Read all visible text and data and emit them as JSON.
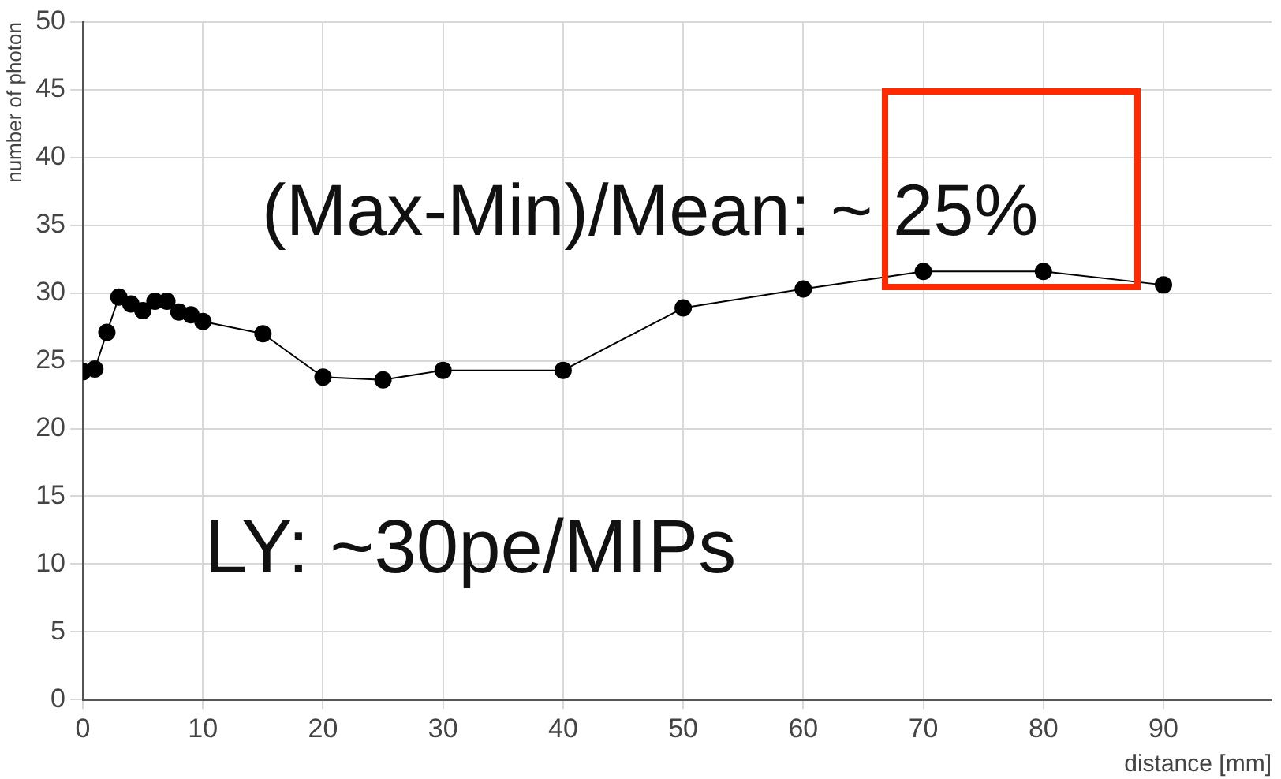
{
  "chart_data": {
    "type": "line",
    "xlabel": "distance [mm]",
    "ylabel": "number of photon",
    "x": [
      0,
      1,
      2,
      3,
      4,
      5,
      6,
      7,
      8,
      9,
      10,
      15,
      20,
      25,
      30,
      40,
      50,
      60,
      70,
      80,
      90
    ],
    "series": [
      {
        "color": "#000000",
        "values": [
          24.2,
          24.4,
          27.1,
          29.7,
          29.2,
          28.7,
          29.4,
          29.4,
          28.6,
          28.4,
          27.9,
          27.0,
          23.8,
          23.6,
          24.3,
          24.3,
          28.9,
          30.3,
          31.6,
          31.6,
          30.6
        ]
      }
    ],
    "xlim": [
      0,
      99
    ],
    "xticks": [
      0,
      10,
      20,
      30,
      40,
      50,
      60,
      70,
      80,
      90
    ],
    "ylim": [
      0,
      50
    ],
    "yticks": [
      0,
      5,
      10,
      15,
      20,
      25,
      30,
      35,
      40,
      45,
      50
    ],
    "grid": true,
    "legend": false,
    "marker": "circle",
    "line_style": "solid",
    "annotations": [
      "(Max-Min)/Mean: ~ 25%",
      "LY: ~30pe/MIPs"
    ]
  }
}
